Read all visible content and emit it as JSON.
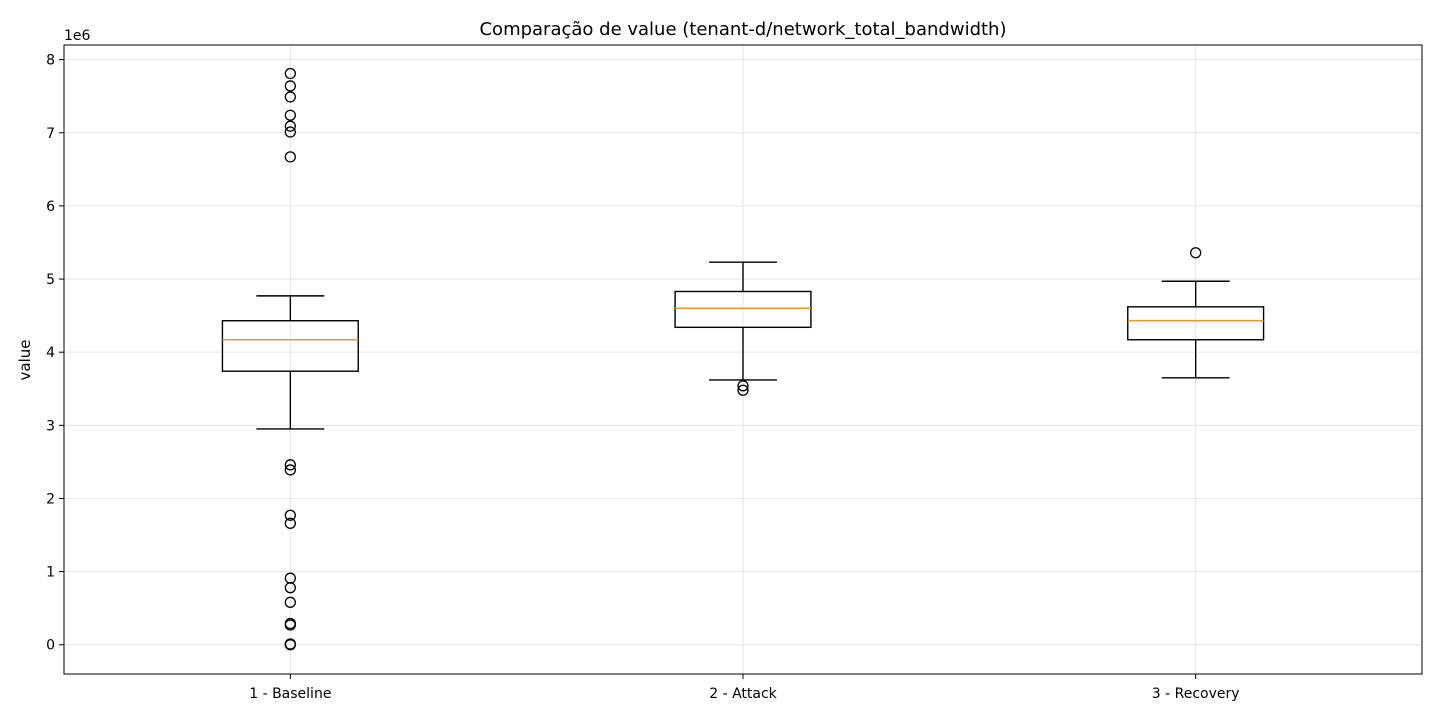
{
  "chart_data": {
    "type": "boxplot",
    "title": "Comparação de value (tenant-d/network_total_bandwidth)",
    "xlabel": "",
    "ylabel": "value",
    "y_offset_label": "1e6",
    "y_scale": 1000000,
    "ylim": [
      -400000,
      8200000
    ],
    "y_ticks": [
      0,
      1000000,
      2000000,
      3000000,
      4000000,
      5000000,
      6000000,
      7000000,
      8000000
    ],
    "y_tick_labels": [
      "0",
      "1",
      "2",
      "3",
      "4",
      "5",
      "6",
      "7",
      "8"
    ],
    "grid": true,
    "categories": [
      "1 - Baseline",
      "2 - Attack",
      "3 - Recovery"
    ],
    "boxes": [
      {
        "category": "1 - Baseline",
        "whisker_low": 2950000,
        "q1": 3740000,
        "median": 4170000,
        "q3": 4430000,
        "whisker_high": 4770000,
        "outliers": [
          7810000,
          7640000,
          7490000,
          7240000,
          7090000,
          7010000,
          6670000,
          2460000,
          2390000,
          1770000,
          1660000,
          910000,
          780000,
          580000,
          290000,
          270000,
          10000,
          0
        ]
      },
      {
        "category": "2 - Attack",
        "whisker_low": 3620000,
        "q1": 4340000,
        "median": 4600000,
        "q3": 4830000,
        "whisker_high": 5230000,
        "outliers": [
          3540000,
          3480000
        ]
      },
      {
        "category": "3 - Recovery",
        "whisker_low": 3650000,
        "q1": 4170000,
        "median": 4430000,
        "q3": 4620000,
        "whisker_high": 4970000,
        "outliers": [
          5360000
        ]
      }
    ],
    "colors": {
      "box": "#000000",
      "median": "#e69a2f",
      "grid": "#e6e6e6"
    }
  }
}
